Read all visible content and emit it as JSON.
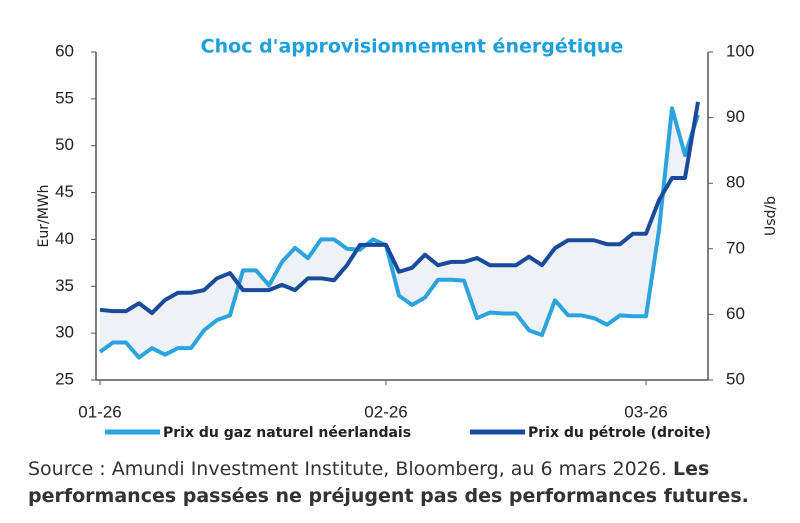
{
  "chart_data": {
    "type": "line",
    "title": "Choc d'approvisionnement énergétique",
    "ylabel": "Eur/MWh",
    "y2label": "Usd/b",
    "categories": [
      "01-26",
      null,
      null,
      null,
      null,
      null,
      null,
      null,
      null,
      null,
      null,
      null,
      null,
      null,
      null,
      null,
      null,
      null,
      null,
      null,
      null,
      null,
      "02-26",
      null,
      null,
      null,
      null,
      null,
      null,
      null,
      null,
      null,
      null,
      null,
      null,
      null,
      null,
      null,
      null,
      null,
      null,
      null,
      "03-26",
      null,
      null,
      null,
      null
    ],
    "series": [
      {
        "name": "Prix du gaz naturel néerlandais",
        "color": "#2ba3dd",
        "values": [
          28,
          29,
          29,
          27.4,
          28.4,
          27.7,
          28.4,
          28.4,
          30.3,
          31.4,
          31.9,
          36.7,
          36.7,
          35.1,
          37.6,
          39.1,
          38,
          40,
          40,
          39,
          38.9,
          40,
          39.4,
          34,
          33,
          33.8,
          35.7,
          35.7,
          35.6,
          31.6,
          32.2,
          32.1,
          32.1,
          30.3,
          29.8,
          33.5,
          31.9,
          31.9,
          31.6,
          30.9,
          31.9,
          31.8,
          31.8,
          41,
          54,
          49,
          53.3
        ]
      },
      {
        "name": "Prix du pétrole (droite)",
        "color": "#1a4a9c",
        "axis": "y2",
        "values": [
          60.7,
          60.5,
          60.5,
          61.7,
          60.2,
          62.2,
          63.3,
          63.3,
          63.7,
          65.5,
          66.3,
          63.7,
          63.7,
          63.7,
          64.5,
          63.7,
          65.5,
          65.5,
          65.2,
          67.5,
          70.6,
          70.6,
          70.6,
          66.5,
          67.1,
          69.1,
          67.5,
          68,
          68,
          68.6,
          67.5,
          67.5,
          67.5,
          68.8,
          67.5,
          70.1,
          71.3,
          71.3,
          71.3,
          70.7,
          70.7,
          72.3,
          72.3,
          77.4,
          80.8,
          80.8,
          92.4
        ]
      }
    ],
    "ylim": [
      25,
      60
    ],
    "yticks": [
      25,
      30,
      35,
      40,
      45,
      50,
      55,
      60
    ],
    "y2lim": [
      50,
      100
    ],
    "y2ticks": [
      50,
      60,
      70,
      80,
      90,
      100
    ],
    "fill_between": "#eef2f7",
    "source": "Source : Amundi Investment Institute, Bloomberg, au 6 mars 2026.",
    "note": "Les performances passées ne préjugent pas des performances futures."
  }
}
